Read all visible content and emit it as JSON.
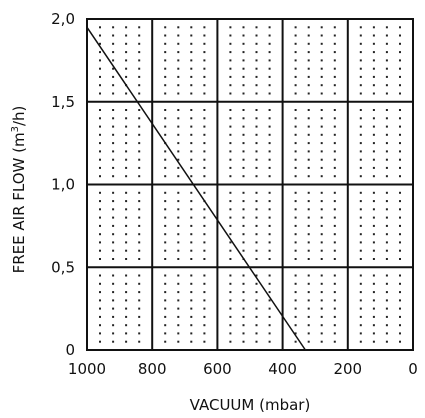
{
  "chart_data": {
    "type": "line",
    "title": "",
    "xlabel": "VACUUM (mbar)",
    "ylabel": "FREE AIR FLOW (m³/h)",
    "ylabel_parts": {
      "prefix": "FREE AIR FLOW (m",
      "superscript": "3",
      "suffix": "/h)"
    },
    "x_axis_reversed": true,
    "xlim": [
      1000,
      0
    ],
    "ylim": [
      0,
      2.0
    ],
    "x_ticks": [
      1000,
      800,
      600,
      400,
      200,
      0
    ],
    "x_tick_labels": [
      "1000",
      "800",
      "600",
      "400",
      "200",
      "0"
    ],
    "y_ticks": [
      0,
      0.5,
      1.0,
      1.5,
      2.0
    ],
    "y_tick_labels": [
      "0",
      "0,5",
      "1,0",
      "1,5",
      "2,0"
    ],
    "grid": true,
    "minor_grid": "dotted",
    "series": [
      {
        "x": [
          1000,
          330
        ],
        "y": [
          1.95,
          0.0
        ]
      }
    ]
  }
}
